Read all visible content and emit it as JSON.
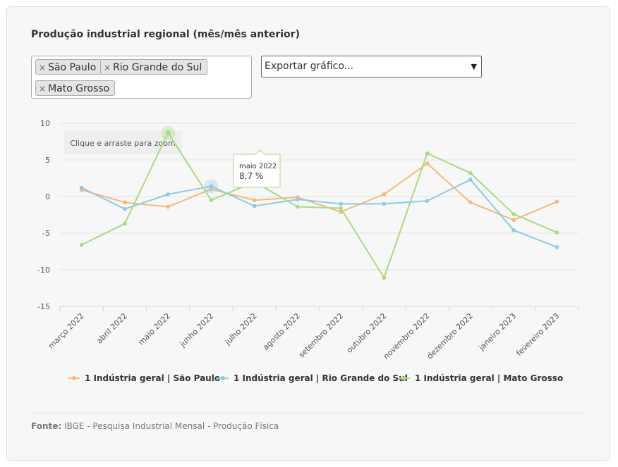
{
  "title": "Produção industrial regional (mês/mês anterior)",
  "filter": {
    "tags": [
      "São Paulo",
      "Rio Grande do Sul",
      "Mato Grosso"
    ],
    "remove_symbol": "×"
  },
  "export": {
    "placeholder": "Exportar gráfico..."
  },
  "zoom_hint": "Clique e arraste para zoom",
  "tooltip": {
    "title": "maio 2022",
    "value": "8,7 %"
  },
  "source": {
    "label": "Fonte:",
    "text": " IBGE - Pesquisa Industrial Mensal - Produção Física"
  },
  "colors": {
    "sao_paulo": "#f4b87a",
    "rio_grande_do_sul": "#8ecae6",
    "mato_grosso": "#a8d985"
  },
  "chart_data": {
    "type": "line",
    "title": "Produção industrial regional (mês/mês anterior)",
    "categories": [
      "março 2022",
      "abril 2022",
      "maio 2022",
      "junho 2022",
      "julho 2022",
      "agosto 2022",
      "setembro 2022",
      "outubro 2022",
      "novembro 2022",
      "dezembro 2022",
      "janeiro 2023",
      "fevereiro 2023"
    ],
    "ylim": [
      -15,
      10
    ],
    "yticks": [
      10,
      5,
      0,
      -5,
      -10,
      -15
    ],
    "grid": true,
    "legend_position": "bottom",
    "series": [
      {
        "name": "1 Indústria geral | São Paulo",
        "color": "#f4b87a",
        "values": [
          0.9,
          -0.8,
          -1.4,
          1.0,
          -0.5,
          -0.1,
          -2.1,
          0.3,
          4.5,
          -0.8,
          -3.2,
          -0.7
        ]
      },
      {
        "name": "1 Indústria geral | Rio Grande do Sul",
        "color": "#8ecae6",
        "values": [
          1.2,
          -1.7,
          0.3,
          1.4,
          -1.3,
          -0.4,
          -1.0,
          -1.0,
          -0.6,
          2.3,
          -4.6,
          -6.9
        ]
      },
      {
        "name": "1 Indústria geral | Mato Grosso",
        "color": "#a8d985",
        "values": [
          -6.6,
          -3.7,
          8.7,
          -0.5,
          2.0,
          -1.4,
          -1.6,
          -11.1,
          5.9,
          3.2,
          -2.4,
          -4.9
        ]
      }
    ]
  }
}
